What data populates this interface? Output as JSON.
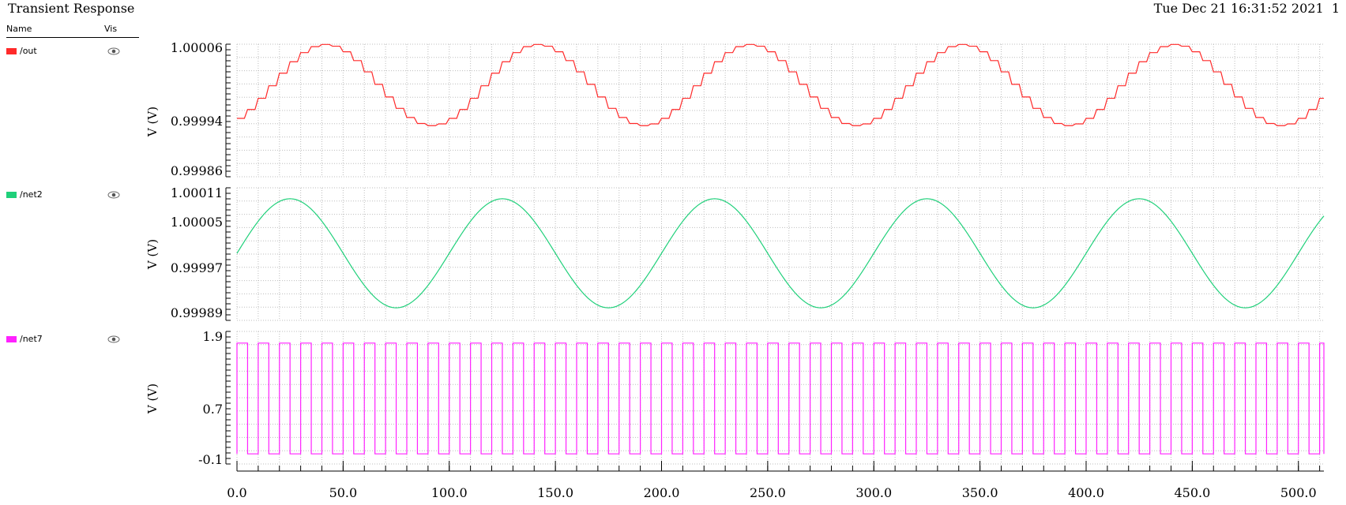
{
  "window": {
    "title": "Transient Response",
    "timestamp": "Tue Dec 21 16:31:52 2021  1"
  },
  "legend": {
    "name_header": "Name",
    "vis_header": "Vis",
    "items": [
      {
        "label": "/out",
        "color": "#ff2a2a",
        "icon": "eye-icon"
      },
      {
        "label": "/net2",
        "color": "#1fd07a",
        "icon": "eye-icon"
      },
      {
        "label": "/net7",
        "color": "#ff22ff",
        "icon": "eye-icon"
      }
    ]
  },
  "chart_data": [
    {
      "type": "line",
      "series": [
        {
          "name": "/out",
          "color": "#ff2a2a"
        }
      ],
      "ylabel": "V (V)",
      "yticks": [
        "1.00006",
        "0.99994",
        "0.99986"
      ],
      "ylim": [
        0.99986,
        1.00006
      ],
      "grid": true,
      "waveform": {
        "shape": "staircase-sine",
        "offset": 1.0,
        "amplitude": 6.6e-05,
        "period": 100.0,
        "phase_deg": -55,
        "step_width": 5.0
      }
    },
    {
      "type": "line",
      "series": [
        {
          "name": "/net2",
          "color": "#1fd07a"
        }
      ],
      "ylabel": "V (V)",
      "yticks": [
        "1.00011",
        "1.00005",
        "0.99997",
        "0.99989"
      ],
      "ylim": [
        0.99989,
        1.00011
      ],
      "grid": true,
      "waveform": {
        "shape": "sine",
        "offset": 1.0,
        "amplitude": 0.0001,
        "period": 100.0,
        "phase_deg": 0
      }
    },
    {
      "type": "line",
      "series": [
        {
          "name": "/net7",
          "color": "#ff22ff"
        }
      ],
      "ylabel": "V (V)",
      "yticks": [
        "1.9",
        "0.7",
        "-0.1"
      ],
      "ylim": [
        -0.1,
        1.9
      ],
      "grid": true,
      "waveform": {
        "shape": "square",
        "low": 0.0,
        "high": 1.8,
        "period": 10.0,
        "duty": 0.5
      }
    }
  ],
  "x_axis": {
    "xlim": [
      0.0,
      512.0
    ],
    "ticks": [
      "0.0",
      "50.0",
      "100.0",
      "150.0",
      "200.0",
      "250.0",
      "300.0",
      "350.0",
      "400.0",
      "450.0",
      "500.0"
    ],
    "tick_values": [
      0,
      50,
      100,
      150,
      200,
      250,
      300,
      350,
      400,
      450,
      500
    ],
    "minor_step": 10
  }
}
